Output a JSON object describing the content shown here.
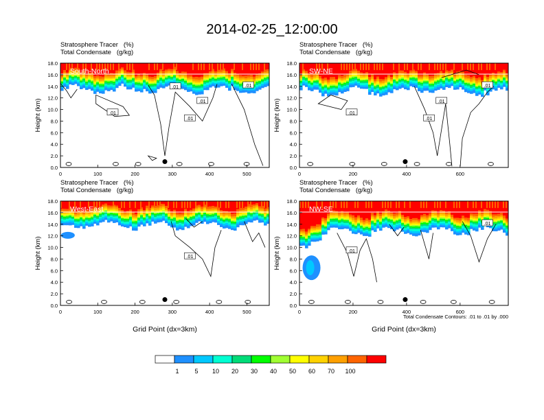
{
  "title": "2014-02-25_12:00:00",
  "field_labels": [
    "Stratosphere Tracer   (%)",
    "Total Condensate   (g/kg)"
  ],
  "contour_info": "Total Condensate Contours: .01 to .01 by .000",
  "colors": {
    "levels": [
      "#ffffff",
      "#1e90ff",
      "#00c8ff",
      "#00ffd2",
      "#00dc78",
      "#00ff00",
      "#a0ff32",
      "#ffff00",
      "#ffd200",
      "#ffa000",
      "#ff6400",
      "#ff0000"
    ],
    "contour_line": "#000000"
  },
  "colorbar": {
    "labels": [
      "1",
      "5",
      "10",
      "20",
      "30",
      "40",
      "50",
      "60",
      "70",
      "100"
    ]
  },
  "chart_data": [
    {
      "type": "heatmap",
      "panel_label": "South-North",
      "xlabel": "",
      "ylabel": "Height (km)",
      "xlim": [
        0,
        560
      ],
      "ylim": [
        0,
        18
      ],
      "xticks": [
        "0",
        "100",
        "200",
        "300",
        "400",
        "500"
      ],
      "yticks": [
        "0.0",
        "2.0",
        "4.0",
        "6.0",
        "8.0",
        "10.0",
        "12.0",
        "14.0",
        "16.0",
        "18.0"
      ],
      "contour_labels": [
        ".01",
        ".01",
        ".01",
        ".01",
        ".01"
      ],
      "marker_point": [
        280,
        1.0
      ],
      "tracer_base_km": 14.2
    },
    {
      "type": "heatmap",
      "panel_label": "SW-NE",
      "xlabel": "",
      "ylabel": "Height (km)",
      "xlim": [
        0,
        780
      ],
      "ylim": [
        0,
        18
      ],
      "xticks": [
        "0",
        "200",
        "400",
        "600"
      ],
      "yticks": [
        "0.0",
        "2.0",
        "4.0",
        "6.0",
        "8.0",
        "10.0",
        "12.0",
        "14.0",
        "16.0",
        "18.0"
      ],
      "contour_labels": [
        ".01",
        ".01",
        ".01",
        ".01"
      ],
      "marker_point": [
        395,
        1.0
      ],
      "tracer_base_km": 13.8
    },
    {
      "type": "heatmap",
      "panel_label": "West-East",
      "xlabel": "Grid Point (dx=3km)",
      "ylabel": "Height (km)",
      "xlim": [
        0,
        560
      ],
      "ylim": [
        0,
        18
      ],
      "xticks": [
        "0",
        "100",
        "200",
        "300",
        "400",
        "500"
      ],
      "yticks": [
        "0.0",
        "2.0",
        "4.0",
        "6.0",
        "8.0",
        "10.0",
        "12.0",
        "14.0",
        "16.0",
        "18.0"
      ],
      "contour_labels": [
        ".01"
      ],
      "marker_point": [
        280,
        1.0
      ],
      "tracer_base_km": 14.5
    },
    {
      "type": "heatmap",
      "panel_label": "NW-SE",
      "xlabel": "Grid Point (dx=3km)",
      "ylabel": "Height (km)",
      "xlim": [
        0,
        780
      ],
      "ylim": [
        0,
        18
      ],
      "xticks": [
        "0",
        "200",
        "400",
        "600"
      ],
      "yticks": [
        "0.0",
        "2.0",
        "4.0",
        "6.0",
        "8.0",
        "10.0",
        "12.0",
        "14.0",
        "16.0",
        "18.0"
      ],
      "contour_labels": [
        ".01",
        ".01"
      ],
      "marker_point": [
        395,
        1.0
      ],
      "tracer_base_km": 13.5
    }
  ]
}
